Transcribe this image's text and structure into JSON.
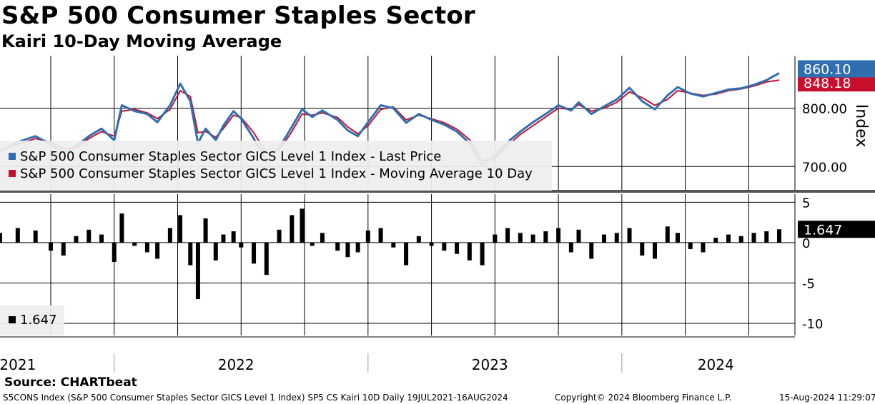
{
  "header": {
    "title": "S&P 500 Consumer Staples Sector",
    "subtitle": "Kairi 10-Day Moving Average"
  },
  "footer": {
    "source": "Source: CHARTbeat",
    "description": "S5CONS Index (S&P 500 Consumer Staples Sector GICS Level 1 Index) SP5 CS Kairi 10D  Daily 19JUL2021-16AUG2024",
    "copyright": "Copyright© 2024 Bloomberg Finance L.P.",
    "timestamp": "15-Aug-2024 11:29:07"
  },
  "colors": {
    "last_price": "#2f6fb0",
    "moving_average": "#c8102e",
    "kairi_bars": "#000000"
  },
  "chart_data": [
    {
      "type": "line",
      "ylabel": "Index",
      "ylim": [
        660,
        890
      ],
      "y_ticks": [
        700,
        800
      ],
      "y_tick_labels": [
        "700.00",
        "800.00"
      ],
      "x_range": [
        2021.55,
        2024.62
      ],
      "x_year_labels": [
        "2021",
        "2022",
        "2023",
        "2024"
      ],
      "grid": true,
      "legend_position": "bottom-left",
      "last_value_label": "860.10",
      "hidden_value_label": "848.18",
      "series": [
        {
          "name": "S&P 500 Consumer Staples Sector GICS Level 1 Index - Last Price",
          "x": [
            2021.55,
            2021.62,
            2021.69,
            2021.75,
            2021.8,
            2021.85,
            2021.9,
            2021.95,
            2022.0,
            2022.03,
            2022.08,
            2022.13,
            2022.17,
            2022.22,
            2022.26,
            2022.3,
            2022.33,
            2022.36,
            2022.4,
            2022.43,
            2022.47,
            2022.5,
            2022.55,
            2022.6,
            2022.65,
            2022.7,
            2022.74,
            2022.78,
            2022.82,
            2022.88,
            2022.92,
            2022.96,
            2023.0,
            2023.05,
            2023.1,
            2023.15,
            2023.2,
            2023.25,
            2023.3,
            2023.35,
            2023.4,
            2023.45,
            2023.5,
            2023.55,
            2023.6,
            2023.65,
            2023.7,
            2023.75,
            2023.8,
            2023.83,
            2023.88,
            2023.93,
            2023.98,
            2024.03,
            2024.08,
            2024.13,
            2024.18,
            2024.22,
            2024.27,
            2024.32,
            2024.37,
            2024.42,
            2024.47,
            2024.52,
            2024.57,
            2024.62
          ],
          "values": [
            726,
            742,
            752,
            738,
            722,
            735,
            752,
            765,
            745,
            805,
            795,
            790,
            776,
            805,
            842,
            812,
            740,
            765,
            745,
            770,
            795,
            782,
            748,
            710,
            732,
            768,
            798,
            785,
            796,
            780,
            762,
            752,
            776,
            805,
            800,
            775,
            790,
            780,
            772,
            760,
            740,
            702,
            718,
            742,
            760,
            776,
            790,
            805,
            796,
            810,
            790,
            803,
            815,
            835,
            812,
            798,
            822,
            836,
            825,
            820,
            826,
            832,
            834,
            840,
            848,
            860.1
          ]
        },
        {
          "name": "S&P 500 Consumer Staples Sector GICS Level 1 Index - Moving Average 10 Day",
          "x": [
            2021.55,
            2021.62,
            2021.69,
            2021.75,
            2021.8,
            2021.85,
            2021.9,
            2021.95,
            2022.0,
            2022.03,
            2022.08,
            2022.13,
            2022.17,
            2022.22,
            2022.26,
            2022.3,
            2022.33,
            2022.36,
            2022.4,
            2022.43,
            2022.47,
            2022.5,
            2022.55,
            2022.6,
            2022.65,
            2022.7,
            2022.74,
            2022.78,
            2022.82,
            2022.88,
            2022.92,
            2022.96,
            2023.0,
            2023.05,
            2023.1,
            2023.15,
            2023.2,
            2023.25,
            2023.3,
            2023.35,
            2023.4,
            2023.45,
            2023.5,
            2023.55,
            2023.6,
            2023.65,
            2023.7,
            2023.75,
            2023.8,
            2023.83,
            2023.88,
            2023.93,
            2023.98,
            2024.03,
            2024.08,
            2024.13,
            2024.18,
            2024.22,
            2024.27,
            2024.32,
            2024.37,
            2024.42,
            2024.47,
            2024.52,
            2024.57,
            2024.62
          ],
          "values": [
            728,
            738,
            748,
            742,
            730,
            732,
            748,
            760,
            752,
            795,
            798,
            792,
            782,
            798,
            830,
            820,
            758,
            760,
            750,
            765,
            788,
            784,
            758,
            722,
            728,
            760,
            790,
            788,
            792,
            784,
            768,
            756,
            770,
            798,
            802,
            780,
            788,
            782,
            775,
            764,
            746,
            710,
            714,
            736,
            755,
            770,
            785,
            800,
            798,
            806,
            795,
            800,
            810,
            828,
            818,
            805,
            815,
            830,
            826,
            822,
            824,
            830,
            833,
            838,
            845,
            848.18
          ]
        }
      ]
    },
    {
      "type": "bar",
      "ylim": [
        -11.5,
        6
      ],
      "y_ticks": [
        5,
        0,
        -5,
        -10
      ],
      "y_tick_labels": [
        "5",
        "0",
        "-5",
        "-10"
      ],
      "x_range": [
        2021.55,
        2024.62
      ],
      "last_value_label": "1.647",
      "legend_position": "bottom-left",
      "series": [
        {
          "name": "1.647",
          "x": [
            2021.55,
            2021.62,
            2021.69,
            2021.75,
            2021.8,
            2021.85,
            2021.9,
            2021.95,
            2022.0,
            2022.03,
            2022.08,
            2022.13,
            2022.17,
            2022.22,
            2022.26,
            2022.3,
            2022.33,
            2022.36,
            2022.4,
            2022.43,
            2022.47,
            2022.5,
            2022.55,
            2022.6,
            2022.65,
            2022.7,
            2022.74,
            2022.78,
            2022.82,
            2022.88,
            2022.92,
            2022.96,
            2023.0,
            2023.05,
            2023.1,
            2023.15,
            2023.2,
            2023.25,
            2023.3,
            2023.35,
            2023.4,
            2023.45,
            2023.5,
            2023.55,
            2023.6,
            2023.65,
            2023.7,
            2023.75,
            2023.8,
            2023.83,
            2023.88,
            2023.93,
            2023.98,
            2024.03,
            2024.08,
            2024.13,
            2024.18,
            2024.22,
            2024.27,
            2024.32,
            2024.37,
            2024.42,
            2024.47,
            2024.52,
            2024.57,
            2024.62
          ],
          "values": [
            1.2,
            1.8,
            1.5,
            -1.0,
            -1.6,
            0.8,
            1.6,
            1.0,
            -2.4,
            3.6,
            -0.4,
            -1.2,
            -2.0,
            1.8,
            3.4,
            -2.8,
            -7.0,
            3.0,
            -2.2,
            1.0,
            1.4,
            -0.6,
            -2.6,
            -4.0,
            1.6,
            3.4,
            4.2,
            -0.4,
            1.2,
            -1.0,
            -1.8,
            -1.2,
            1.5,
            1.8,
            -0.6,
            -2.8,
            0.8,
            -0.4,
            -1.0,
            -1.4,
            -2.2,
            -2.8,
            1.0,
            1.8,
            1.2,
            1.0,
            1.4,
            1.8,
            -1.2,
            1.6,
            -2.0,
            1.0,
            1.2,
            1.8,
            -1.6,
            -2.0,
            2.0,
            1.2,
            -0.8,
            -1.2,
            0.6,
            1.0,
            0.8,
            1.2,
            1.4,
            1.647
          ]
        }
      ]
    }
  ]
}
